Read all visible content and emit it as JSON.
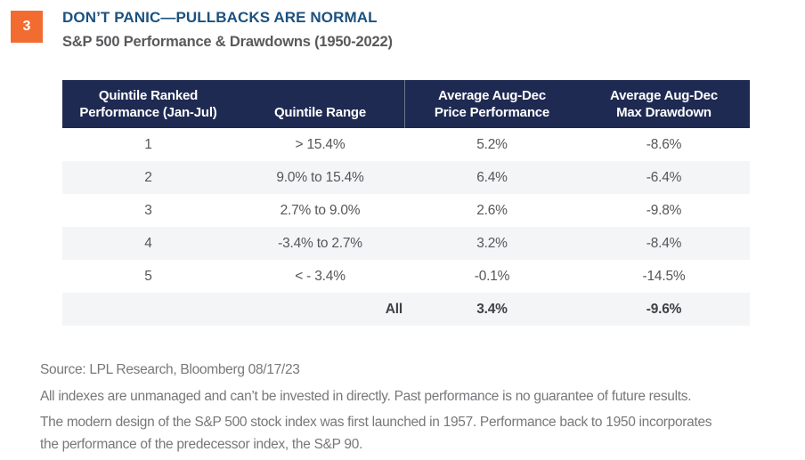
{
  "colors": {
    "accent_orange": "#f26c31",
    "title_blue": "#1c5180",
    "header_navy": "#1f2a52",
    "row_alt_gray": "#f4f5f7",
    "body_text_gray": "#55565a",
    "footer_text_gray": "#77787b"
  },
  "badge": {
    "number": "3"
  },
  "header": {
    "title": "DON’T PANIC—PULLBACKS ARE NORMAL",
    "subtitle": "S&P 500 Performance & Drawdowns (1950-2022)"
  },
  "table": {
    "columns": [
      {
        "line1": "Quintile Ranked",
        "line2": "Performance (Jan-Jul)"
      },
      {
        "line1": "",
        "line2": "Quintile Range"
      },
      {
        "line1": "Average Aug-Dec",
        "line2": "Price Performance"
      },
      {
        "line1": "Average Aug-Dec",
        "line2": "Max Drawdown"
      }
    ],
    "rows": [
      {
        "quintile": "1",
        "range": "> 15.4%",
        "performance": "5.2%",
        "drawdown": "-8.6%"
      },
      {
        "quintile": "2",
        "range": "9.0% to 15.4%",
        "performance": "6.4%",
        "drawdown": "-6.4%"
      },
      {
        "quintile": "3",
        "range": "2.7% to 9.0%",
        "performance": "2.6%",
        "drawdown": "-9.8%"
      },
      {
        "quintile": "4",
        "range": "-3.4% to 2.7%",
        "performance": "3.2%",
        "drawdown": "-8.4%"
      },
      {
        "quintile": "5",
        "range": "< - 3.4%",
        "performance": "-0.1%",
        "drawdown": "-14.5%"
      }
    ],
    "summary": {
      "label": "All",
      "performance": "3.4%",
      "drawdown": "-9.6%"
    }
  },
  "footer": {
    "source": "Source: LPL Research, Bloomberg 08/17/23",
    "disclaimer1": "All indexes are unmanaged and can’t be invested in directly. Past performance is no guarantee of future results.",
    "disclaimer2_line1": "The modern design of the S&P 500 stock index was first launched in 1957. Performance back to 1950 incorporates",
    "disclaimer2_line2": "the performance of the predecessor index, the S&P 90."
  },
  "chart_data": {
    "type": "table",
    "title": "DON’T PANIC—PULLBACKS ARE NORMAL",
    "subtitle": "S&P 500 Performance & Drawdowns (1950-2022)",
    "columns": [
      "Quintile Ranked Performance (Jan-Jul)",
      "Quintile Range",
      "Average Aug-Dec Price Performance",
      "Average Aug-Dec Max Drawdown"
    ],
    "rows": [
      [
        "1",
        "> 15.4%",
        "5.2%",
        "-8.6%"
      ],
      [
        "2",
        "9.0% to 15.4%",
        "6.4%",
        "-6.4%"
      ],
      [
        "3",
        "2.7% to 9.0%",
        "2.6%",
        "-9.8%"
      ],
      [
        "4",
        "-3.4% to 2.7%",
        "3.2%",
        "-8.4%"
      ],
      [
        "5",
        "< - 3.4%",
        "-0.1%",
        "-14.5%"
      ],
      [
        "All",
        "",
        "3.4%",
        "-9.6%"
      ]
    ],
    "layout_hints": {
      "header_background": "#1f2a52",
      "zebra_striping": true,
      "summary_row_bold": true
    }
  }
}
